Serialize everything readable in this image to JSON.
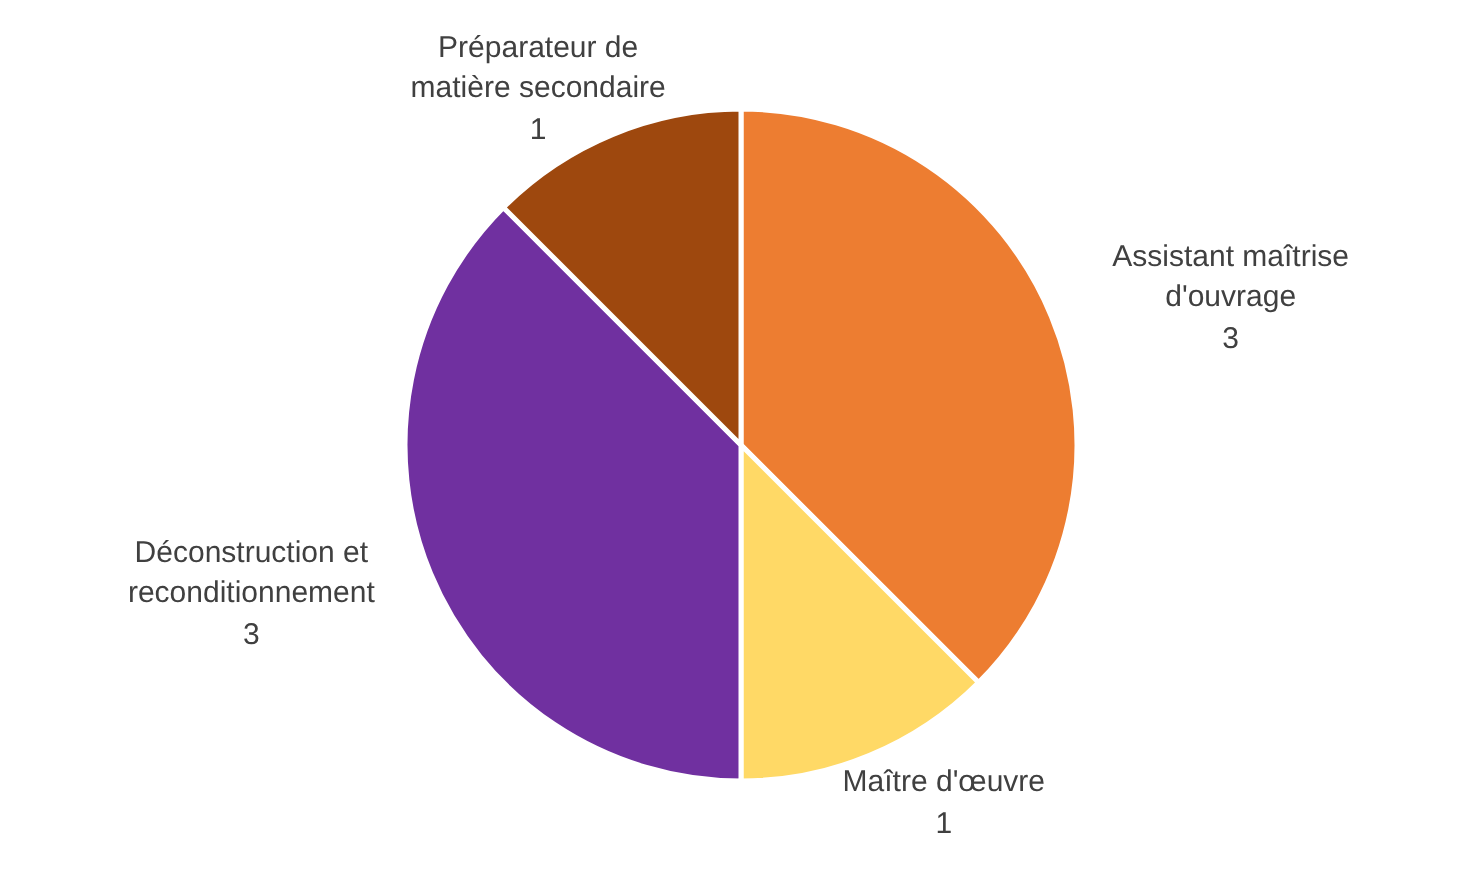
{
  "chart_data": {
    "type": "pie",
    "categories": [
      "Assistant maîtrise d'ouvrage",
      "Maître d'œuvre",
      "Déconstruction et reconditionnement",
      "Préparateur de matière secondaire"
    ],
    "values": [
      3,
      1,
      3,
      1
    ],
    "colors": [
      "#ed7d31",
      "#ffd966",
      "#7030a0",
      "#9e480e"
    ],
    "data_labels": true
  }
}
